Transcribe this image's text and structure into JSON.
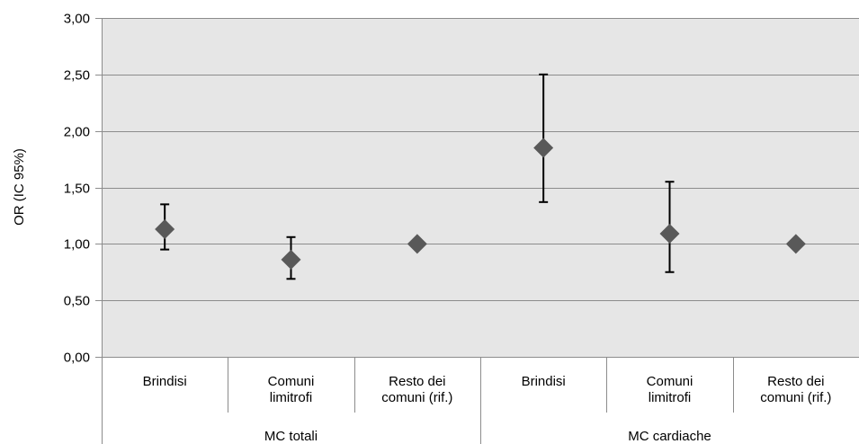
{
  "chart_data": {
    "type": "scatter",
    "ylabel": "OR (IC 95%)",
    "ylim": [
      0,
      3
    ],
    "y_ticks": [
      "0,00",
      "0,50",
      "1,00",
      "1,50",
      "2,00",
      "2,50",
      "3,00"
    ],
    "y_tick_values": [
      0,
      0.5,
      1,
      1.5,
      2,
      2.5,
      3
    ],
    "grid": true,
    "categories": [
      [
        "Brindisi"
      ],
      [
        "Comuni",
        "limitrofi"
      ],
      [
        "Resto dei",
        "comuni (rif.)"
      ],
      [
        "Brindisi"
      ],
      [
        "Comuni",
        "limitrofi"
      ],
      [
        "Resto dei",
        "comuni (rif.)"
      ]
    ],
    "groups": [
      {
        "label": "MC totali",
        "count": 3
      },
      {
        "label": "MC cardiache",
        "count": 3
      }
    ],
    "values": [
      1.13,
      0.86,
      1.0,
      1.85,
      1.09,
      1.0
    ],
    "ci_lower": [
      0.95,
      0.69,
      null,
      1.37,
      0.75,
      null
    ],
    "ci_upper": [
      1.35,
      1.06,
      null,
      2.5,
      1.55,
      null
    ]
  },
  "colors": {
    "plot_background": "#e6e6e6",
    "gridline": "#8c8c8c",
    "marker": "#595959",
    "error_bar": "#000000"
  }
}
